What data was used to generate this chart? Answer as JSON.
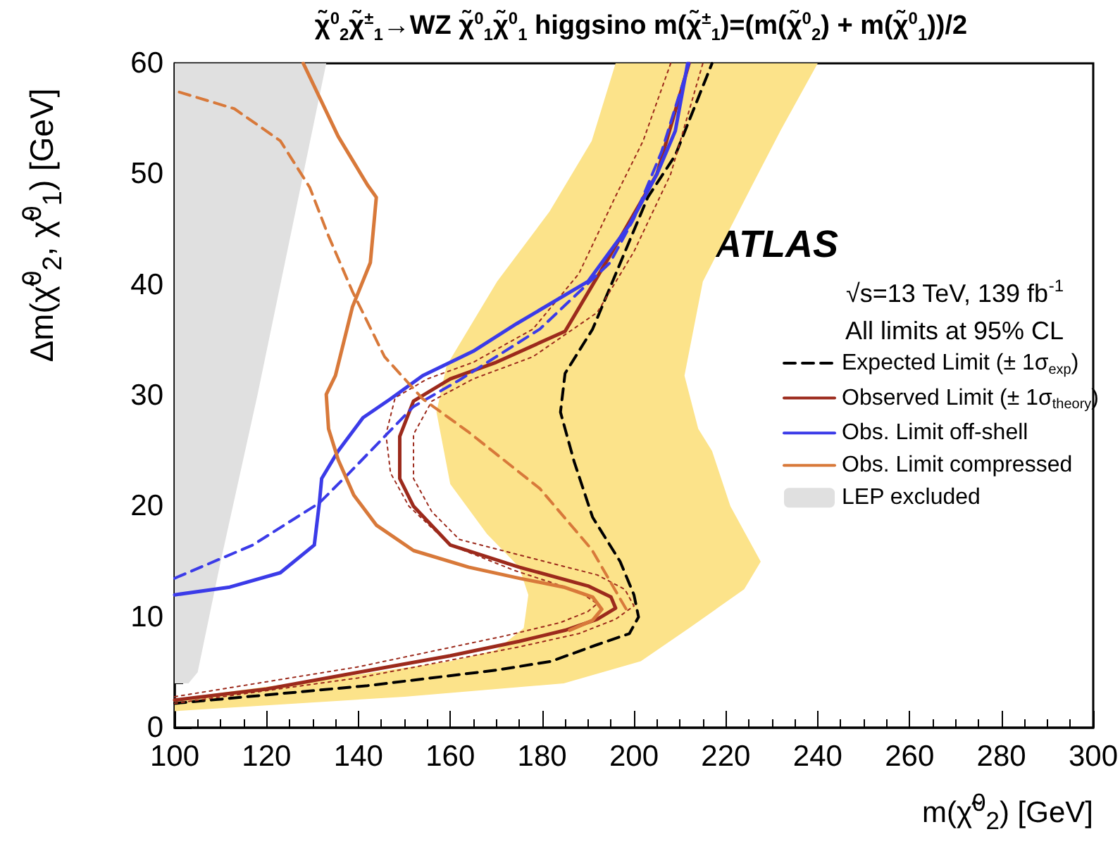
{
  "chart_data": {
    "type": "line",
    "title": "χ̃$^{0}$$_{2}$χ̃$^{±}$$_{1}$→WZ χ̃$^{0}$$_{1}$χ̃$^{0}$$_{1}$ higgsino m(χ̃$^{±}$$_{1}$)=(m(χ̃$^{0}$$_{2}$) + m(χ̃$^{0}$$_{1}$))/2",
    "xlabel": "m(χ̃$^{0}$$_{2}$) [GeV]",
    "ylabel": "Δm(χ̃$^{0}$$_{2}$, χ̃$^{0}$$_{1}$) [GeV]",
    "annotations": [
      "ATLAS",
      "√s=13 TeV, 139 fb$^{-1}$",
      "All limits at 95% CL"
    ],
    "xlim": [
      100,
      300
    ],
    "xticks": [
      100,
      120,
      140,
      160,
      180,
      200,
      220,
      240,
      260,
      280,
      300
    ],
    "ylim": [
      0,
      60
    ],
    "yticks": [
      0,
      10,
      20,
      30,
      40,
      50,
      60
    ],
    "grid": false,
    "legend": "right",
    "series": [
      {
        "type": "area",
        "color": "#fce38a",
        "x": [
          240,
          232,
          225.5,
          215,
          211,
          214,
          217,
          221,
          227.6,
          224,
          212,
          201.5,
          184.7,
          150,
          100,
          100,
          140,
          160,
          170,
          176,
          177,
          175,
          168,
          160,
          157,
          159.2,
          170.2,
          181.6,
          190.8,
          196
        ],
        "values": [
          60,
          54,
          48.8,
          40.3,
          31.8,
          27,
          25,
          20,
          15,
          12.5,
          9,
          6,
          4,
          2.8,
          1.5,
          2.6,
          4.8,
          6,
          7,
          9,
          12,
          14.5,
          17.5,
          22,
          28.5,
          32.7,
          40.3,
          46.6,
          53,
          60
        ]
      },
      {
        "type": "line",
        "name": "Expected Limit (± 1σ$_{exp}$)",
        "color": "#000000",
        "line_style": "dashed",
        "x": [
          100,
          142,
          170,
          182,
          192,
          199,
          201,
          200,
          197,
          191,
          187,
          184,
          185,
          191,
          203,
          209,
          217
        ],
        "values": [
          2.2,
          3.8,
          5.2,
          6,
          7.5,
          8.5,
          10,
          12,
          15,
          19,
          24,
          28.5,
          32,
          36,
          47.9,
          51.7,
          60
        ]
      },
      {
        "type": "line",
        "name": "Observed Limit (± 1σ$_{theory}$)",
        "color": "#9c2a1c",
        "line_style": "solid",
        "x": [
          100,
          120,
          140,
          160,
          175,
          185,
          192,
          196,
          195,
          190,
          175,
          160,
          152,
          149,
          149,
          152,
          160,
          170,
          185,
          195,
          205,
          212
        ],
        "values": [
          2.5,
          3.5,
          5,
          6.5,
          7.8,
          8.8,
          9.8,
          10.8,
          11.8,
          12.8,
          14.5,
          16.5,
          20,
          22.5,
          26.3,
          29.5,
          31.5,
          33,
          35.8,
          42.8,
          50,
          60
        ]
      },
      {
        "type": "line",
        "color": "#9c2a1c",
        "line_style": "dotted",
        "x": [
          100,
          140,
          175,
          188,
          196,
          200,
          198,
          192,
          176,
          162,
          156,
          152,
          152,
          156,
          165,
          178,
          192,
          200,
          208,
          215
        ],
        "values": [
          2.2,
          4.5,
          7.3,
          8.5,
          9.8,
          11,
          12.5,
          13.8,
          15.5,
          17,
          19.5,
          22.5,
          26.5,
          29.5,
          31.5,
          33.5,
          37.5,
          43,
          50,
          60
        ]
      },
      {
        "type": "line",
        "color": "#9c2a1c",
        "line_style": "dotted",
        "x": [
          100,
          140,
          172,
          184,
          190,
          192,
          188,
          174,
          160,
          151,
          147,
          146,
          148,
          155,
          165,
          178,
          188,
          196,
          202,
          208
        ],
        "values": [
          2.8,
          5.5,
          8.3,
          9.5,
          10.5,
          11.2,
          12.3,
          14.2,
          16.5,
          20,
          23,
          26.5,
          29.8,
          31.5,
          33,
          36,
          41,
          48,
          53,
          60
        ]
      },
      {
        "type": "line",
        "name": "Obs. Limit off-shell",
        "color": "#3b3be8",
        "line_style": "solid",
        "x": [
          100,
          112,
          123,
          130.4,
          131.5,
          132,
          135.6,
          141,
          147,
          154,
          165,
          174.5,
          190,
          199,
          205,
          209,
          211.7
        ],
        "values": [
          12,
          12.7,
          14,
          16.5,
          20.3,
          22.5,
          25,
          28,
          29.7,
          31.8,
          34,
          36.5,
          40.3,
          45.4,
          50,
          53.9,
          60
        ]
      },
      {
        "type": "line",
        "color": "#3b3be8",
        "line_style": "dashed",
        "x": [
          100,
          117,
          131.5,
          138,
          145.7,
          152,
          162,
          179.5,
          194.8,
          200,
          206,
          212
        ],
        "values": [
          13.5,
          16.5,
          20.3,
          23,
          26.3,
          29,
          31.4,
          36,
          42,
          46,
          52,
          60
        ]
      },
      {
        "type": "line",
        "name": "Obs. Limit compressed",
        "color": "#d8793a",
        "line_style": "solid",
        "x": [
          128,
          135.6,
          142,
          143.9,
          142.6,
          138.7,
          135,
          133,
          133.5,
          135.6,
          139,
          143.9,
          152,
          164,
          175,
          184.7,
          191,
          193,
          191,
          186
        ],
        "values": [
          60,
          53.4,
          49,
          47.9,
          42,
          38,
          31.8,
          30.1,
          27,
          24.2,
          21,
          18.3,
          16,
          14.5,
          13.5,
          12.7,
          11.8,
          10.7,
          9.7,
          8.8
        ]
      },
      {
        "type": "line",
        "color": "#d8793a",
        "line_style": "dashed",
        "x": [
          101,
          113,
          123,
          129.4,
          133.4,
          138.7,
          145.7,
          154,
          164,
          179.5,
          190.8,
          199
        ],
        "values": [
          57.4,
          55.9,
          53,
          48.8,
          44.5,
          39.4,
          33.5,
          29.7,
          26.7,
          21.6,
          16.1,
          10.2
        ]
      },
      {
        "type": "area",
        "name": "LEP excluded",
        "color": "#e0e0e0",
        "x": [
          100,
          133,
          118,
          110,
          105,
          103,
          100
        ],
        "values": [
          60,
          60,
          30,
          15,
          5,
          4,
          4
        ]
      }
    ]
  }
}
